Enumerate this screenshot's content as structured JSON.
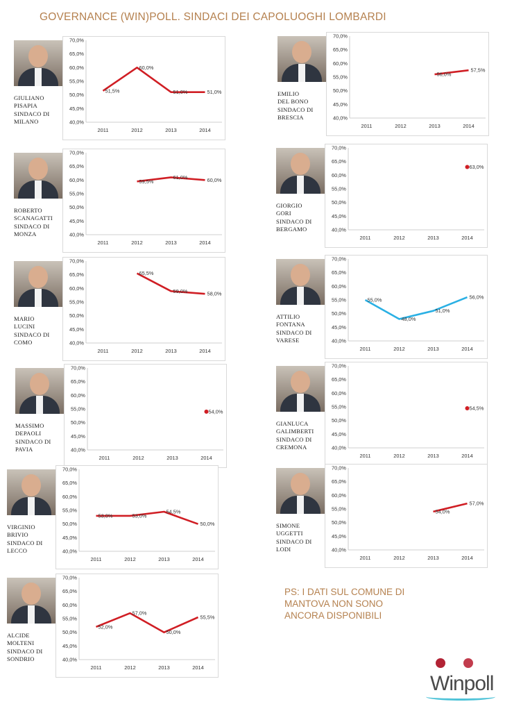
{
  "title": "GOVERNANCE (WIN)POLL. SINDACI DEI CAPOLUOGHI LOMBARDI",
  "note": [
    "PS: I DATI SUL COMUNE DI",
    "MANTOVA NON SONO",
    "ANCORA DISPONIBILI"
  ],
  "logo": {
    "text": "Winpoll",
    "colors": [
      "#b22335",
      "#4fc3d8"
    ]
  },
  "colors": {
    "title": "#b5814f",
    "series_default": "#d01e24",
    "series_varese": "#2ab0e4"
  },
  "chart_data": [
    {
      "type": "line",
      "mayor": [
        "GIULIANO",
        "PISAPIA",
        "SINDACO DI",
        "MILANO"
      ],
      "x": [
        "2011",
        "2012",
        "2013",
        "2014"
      ],
      "ylim": [
        40,
        70
      ],
      "yticks": [
        40,
        45,
        50,
        55,
        60,
        65,
        70
      ],
      "ytick_labels": [
        "40,0%",
        "45,0%",
        "50,0%",
        "55,0%",
        "60,0%",
        "65,0%",
        "70,0%"
      ],
      "values": [
        51.5,
        60.0,
        51.0,
        51.0
      ],
      "labels": [
        "51,5%",
        "60,0%",
        "51,0%",
        "51,0%"
      ],
      "color": "#d01e24",
      "grid": false
    },
    {
      "type": "line",
      "mayor": [
        "EMILIO",
        "DEL BONO",
        "SINDACO DI",
        "BRESCIA"
      ],
      "x": [
        "2011",
        "2012",
        "2013",
        "2014"
      ],
      "ylim": [
        40,
        70
      ],
      "yticks": [
        40,
        45,
        50,
        55,
        60,
        65,
        70
      ],
      "ytick_labels": [
        "40,0%",
        "45,0%",
        "50,0%",
        "55,0%",
        "60,0%",
        "65,0%",
        "70,0%"
      ],
      "values": [
        null,
        null,
        56.0,
        57.5
      ],
      "labels": [
        null,
        null,
        "56,0%",
        "57,5%"
      ],
      "color": "#d01e24",
      "grid": false
    },
    {
      "type": "line",
      "mayor": [
        "ROBERTO",
        "SCANAGATTI",
        "SINDACO DI",
        "MONZA"
      ],
      "x": [
        "2011",
        "2012",
        "2013",
        "2014"
      ],
      "ylim": [
        40,
        70
      ],
      "yticks": [
        40,
        45,
        50,
        55,
        60,
        65,
        70
      ],
      "ytick_labels": [
        "40,0%",
        "45,0%",
        "50,0%",
        "55,0%",
        "60,0%",
        "65,0%",
        "70,0%"
      ],
      "values": [
        null,
        59.5,
        61.0,
        60.0
      ],
      "labels": [
        null,
        "59,5%",
        "61,0%",
        "60,0%"
      ],
      "color": "#d01e24",
      "grid": false
    },
    {
      "type": "line",
      "mayor": [
        "GIORGIO",
        "GORI",
        "SINDACO DI",
        "BERGAMO"
      ],
      "x": [
        "2011",
        "2012",
        "2013",
        "2014"
      ],
      "ylim": [
        40,
        70
      ],
      "yticks": [
        40,
        45,
        50,
        55,
        60,
        65,
        70
      ],
      "ytick_labels": [
        "40,0%",
        "45,0%",
        "50,0%",
        "55,0%",
        "60,0%",
        "65,0%",
        "70,0%"
      ],
      "values": [
        null,
        null,
        null,
        63.0
      ],
      "labels": [
        null,
        null,
        null,
        "63,0%"
      ],
      "color": "#d01e24",
      "grid": false
    },
    {
      "type": "line",
      "mayor": [
        "MARIO",
        "LUCINI",
        "SINDACO DI",
        "COMO"
      ],
      "x": [
        "2011",
        "2012",
        "2013",
        "2014"
      ],
      "ylim": [
        40,
        70
      ],
      "yticks": [
        40,
        45,
        50,
        55,
        60,
        65,
        70
      ],
      "ytick_labels": [
        "40,0%",
        "45,0%",
        "50,0%",
        "55,0%",
        "60,0%",
        "65,0%",
        "70,0%"
      ],
      "values": [
        null,
        65.5,
        59.0,
        58.0
      ],
      "labels": [
        null,
        "65,5%",
        "59,0%",
        "58,0%"
      ],
      "color": "#d01e24",
      "grid": false
    },
    {
      "type": "line",
      "mayor": [
        "ATTILIO",
        "FONTANA",
        "SINDACO DI",
        "VARESE"
      ],
      "x": [
        "2011",
        "2012",
        "2013",
        "2014"
      ],
      "ylim": [
        40,
        70
      ],
      "yticks": [
        40,
        45,
        50,
        55,
        60,
        65,
        70
      ],
      "ytick_labels": [
        "40,0%",
        "45,0%",
        "50,0%",
        "55,0%",
        "60,0%",
        "65,0%",
        "70,0%"
      ],
      "values": [
        55.0,
        48.0,
        51.0,
        56.0
      ],
      "labels": [
        "55,0%",
        "48,0%",
        "51,0%",
        "56,0%"
      ],
      "color": "#2ab0e4",
      "grid": false
    },
    {
      "type": "line",
      "mayor": [
        "MASSIMO",
        "DEPAOLI",
        "SINDACO DI",
        "PAVIA"
      ],
      "x": [
        "2011",
        "2012",
        "2013",
        "2014"
      ],
      "ylim": [
        40,
        70
      ],
      "yticks": [
        40,
        45,
        50,
        55,
        60,
        65,
        70
      ],
      "ytick_labels": [
        "40,0%",
        "45,0%",
        "50,0%",
        "55,0%",
        "60,0%",
        "65,0%",
        "70,0%"
      ],
      "values": [
        null,
        null,
        null,
        54.0
      ],
      "labels": [
        null,
        null,
        null,
        "54,0%"
      ],
      "color": "#d01e24",
      "grid": false
    },
    {
      "type": "line",
      "mayor": [
        "GIANLUCA",
        "GALIMBERTI",
        "SINDACO DI",
        "CREMONA"
      ],
      "x": [
        "2011",
        "2012",
        "2013",
        "2014"
      ],
      "ylim": [
        40,
        70
      ],
      "yticks": [
        40,
        45,
        50,
        55,
        60,
        65,
        70
      ],
      "ytick_labels": [
        "40,0%",
        "45,0%",
        "50,0%",
        "55,0%",
        "60,0%",
        "65,0%",
        "70,0%"
      ],
      "values": [
        null,
        null,
        null,
        54.5
      ],
      "labels": [
        null,
        null,
        null,
        "54,5%"
      ],
      "color": "#d01e24",
      "grid": false
    },
    {
      "type": "line",
      "mayor": [
        "VIRGINIO",
        "BRIVIO",
        "SINDACO DI",
        "LECCO"
      ],
      "x": [
        "2011",
        "2012",
        "2013",
        "2014"
      ],
      "ylim": [
        40,
        70
      ],
      "yticks": [
        40,
        45,
        50,
        55,
        60,
        65,
        70
      ],
      "ytick_labels": [
        "40,0%",
        "45,0%",
        "50,0%",
        "55,0%",
        "60,0%",
        "65,0%",
        "70,0%"
      ],
      "values": [
        53.0,
        53.0,
        54.5,
        50.0
      ],
      "labels": [
        "53,0%",
        "53,0%",
        "54,5%",
        "50,0%"
      ],
      "color": "#d01e24",
      "grid": false
    },
    {
      "type": "line",
      "mayor": [
        "SIMONE",
        "UGGETTI",
        "SINDACO DI",
        "LODI"
      ],
      "x": [
        "2011",
        "2012",
        "2013",
        "2014"
      ],
      "ylim": [
        40,
        70
      ],
      "yticks": [
        40,
        45,
        50,
        55,
        60,
        65,
        70
      ],
      "ytick_labels": [
        "40,0%",
        "45,0%",
        "50,0%",
        "55,0%",
        "60,0%",
        "65,0%",
        "70,0%"
      ],
      "values": [
        null,
        null,
        54.0,
        57.0
      ],
      "labels": [
        null,
        null,
        "54,0%",
        "57,0%"
      ],
      "color": "#d01e24",
      "grid": false
    },
    {
      "type": "line",
      "mayor": [
        "ALCIDE",
        "MOLTENI",
        "SINDACO DI",
        "SONDRIO"
      ],
      "x": [
        "2011",
        "2012",
        "2013",
        "2014"
      ],
      "ylim": [
        40,
        70
      ],
      "yticks": [
        40,
        45,
        50,
        55,
        60,
        65,
        70
      ],
      "ytick_labels": [
        "40,0%",
        "45,0%",
        "50,0%",
        "55,0%",
        "60,0%",
        "65,0%",
        "70,0%"
      ],
      "values": [
        52.0,
        57.0,
        50.0,
        55.5
      ],
      "labels": [
        "52,0%",
        "57,0%",
        "50,0%",
        "55,5%"
      ],
      "color": "#d01e24",
      "grid": false
    }
  ]
}
